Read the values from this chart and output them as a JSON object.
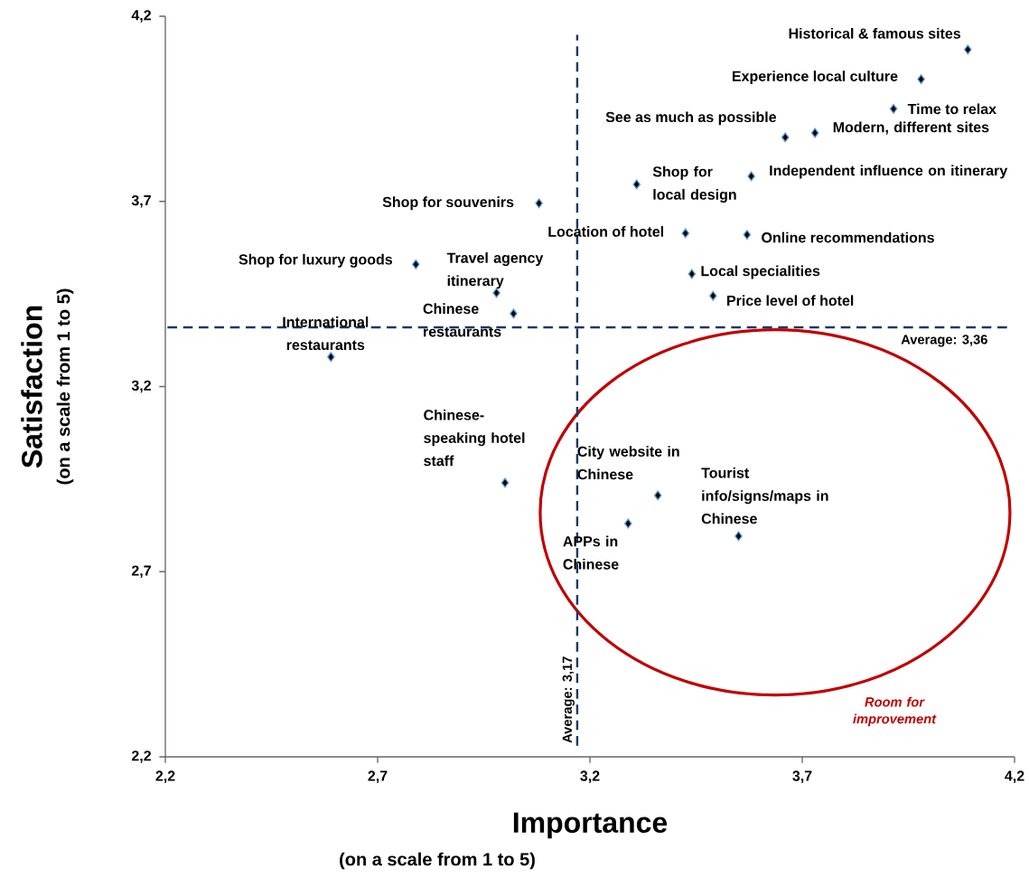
{
  "chart_data": {
    "type": "scatter",
    "xlabel": "Importance",
    "ylabel": "Satisfaction",
    "x": [
      4.09,
      3.98,
      3.915,
      3.73,
      3.66,
      3.58,
      3.31,
      3.08,
      3.425,
      3.57,
      2.79,
      3.44,
      2.98,
      3.49,
      3.02,
      2.59,
      3.0,
      3.36,
      3.29,
      3.55
    ],
    "values": [
      4.11,
      4.03,
      3.95,
      3.885,
      3.873,
      3.768,
      3.746,
      3.695,
      3.614,
      3.61,
      3.53,
      3.504,
      3.453,
      3.445,
      3.397,
      3.28,
      2.94,
      2.906,
      2.83,
      2.796
    ],
    "value_labels": [
      "Historical & famous sites",
      "Experience local culture",
      "Time to relax",
      "Modern, different sites",
      "See as much as possible",
      "Independent influence on itinerary",
      "Shop for local design",
      "Shop for souvenirs",
      "Location of hotel",
      "Online recommendations",
      "Shop for luxury goods",
      "Local specialities",
      "Travel agency itinerary",
      "Price level of hotel",
      "Chinese restaurants",
      "International restaurants",
      "Chinese-speaking hotel staff",
      "City website in Chinese",
      "APPs in Chinese",
      "Tourist info/signs/maps in Chinese"
    ],
    "color": "#000000",
    "marker": "diamond",
    "xlim": [
      2.2,
      4.2
    ],
    "ylim": [
      2.2,
      4.2
    ],
    "xticks": [
      {
        "value": 2.2,
        "label": "2,2"
      },
      {
        "value": 2.7,
        "label": "2,7"
      },
      {
        "value": 3.2,
        "label": "3,2"
      },
      {
        "value": 3.7,
        "label": "3,7"
      },
      {
        "value": 4.2,
        "label": "4,2"
      }
    ],
    "yticks": [
      {
        "value": 2.2,
        "label": "2,2"
      },
      {
        "value": 2.7,
        "label": "2,7"
      },
      {
        "value": 3.2,
        "label": "3,2"
      },
      {
        "value": 3.7,
        "label": "3,7"
      },
      {
        "value": 4.2,
        "label": "4,2"
      }
    ],
    "ref_lines": [
      {
        "axis": "x",
        "value": 3.17,
        "label": "Average: 3,17",
        "color": "#1f3864",
        "line_style": "dashed"
      },
      {
        "axis": "y",
        "value": 3.36,
        "label": "Average: 3,36",
        "color": "#1f3864",
        "line_style": "dashed"
      }
    ],
    "annotations": [
      "(on a scale from 1 to 5)",
      "(on a scale from 1 to 5)",
      "Room for improvement"
    ]
  }
}
